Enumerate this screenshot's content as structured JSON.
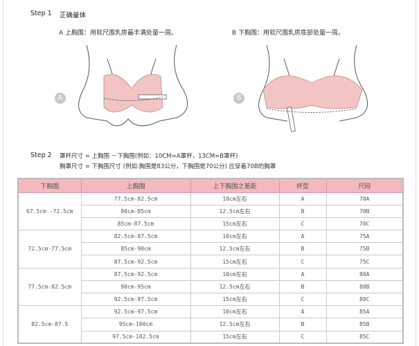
{
  "step1": {
    "label": "Step 1",
    "title": "正确量体",
    "a": {
      "badge": "A",
      "text": "A  上胸围：用软尺围乳房最丰满处量一周。"
    },
    "b": {
      "badge": "B",
      "text": "B  下胸围：用软尺围乳房底部处量一周。"
    }
  },
  "step2": {
    "label": "Step 2",
    "line1": "罩杯尺寸 = 上胸围  －下胸围(例如：10CM=A罩杯，13CM=B罩杯)",
    "line2": "胸罩尺寸 = 下胸围尺寸        (例如:胸围是83公分，下胸围是70公分) 应穿着70B的胸罩"
  },
  "colors": {
    "header_bg": "#f4b9be",
    "bra_pink": "#f2c4c4"
  },
  "table": {
    "headers": [
      "下胸围",
      "上胸围",
      "上下胸围之差距",
      "杯型",
      "尺码"
    ],
    "groups": [
      {
        "under": "67.5cm -72.5cm",
        "rows": [
          [
            "77.5cm-82.5cm",
            "10cm左右",
            "A",
            "70A"
          ],
          [
            "80cm-85cm",
            "12.5cm左右",
            "B",
            "70B"
          ],
          [
            "85cm-87.5cm",
            "15cm左右",
            "C",
            "70C"
          ]
        ]
      },
      {
        "under": "72.5cm-77.5cm",
        "rows": [
          [
            "82.5cm-87.5cm",
            "10cm左右",
            "A",
            "75A"
          ],
          [
            "85cm-90cm",
            "12.5cm左右",
            "B",
            "75B"
          ],
          [
            "87.5cm-92.5cm",
            "15cm左右",
            "C",
            "75C"
          ]
        ]
      },
      {
        "under": "77.5cm-82.5cm",
        "rows": [
          [
            "87.5cm-92.5cm",
            "10cm左右",
            "A",
            "80A"
          ],
          [
            "90cm-95cm",
            "12.5cm左右",
            "B",
            "80B"
          ],
          [
            "92.5cm-97.5cm",
            "15cm左右",
            "C",
            "80C"
          ]
        ]
      },
      {
        "under": "82.5cm-87.5",
        "rows": [
          [
            "92.5cm-97.5cm",
            "10cm左右",
            "A",
            "85A"
          ],
          [
            "95cm-100cm",
            "12.5cm左右",
            "B",
            "85B"
          ],
          [
            "97.5cm-102.5cm",
            "15cm左右",
            "C",
            "85C"
          ]
        ]
      }
    ]
  }
}
